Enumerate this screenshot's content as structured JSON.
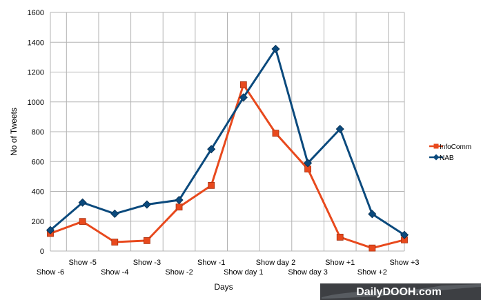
{
  "chart_data": {
    "type": "line",
    "categories": [
      "Show -6",
      "Show -5",
      "Show -4",
      "Show -3",
      "Show -2",
      "Show -1",
      "Show day 1",
      "Show day 2",
      "Show day 3",
      "Show +1",
      "Show +2",
      "Show +3"
    ],
    "series": [
      {
        "name": "InfoComm",
        "color": "#e8491d",
        "marker": "square",
        "values": [
          118,
          198,
          60,
          70,
          295,
          440,
          1115,
          790,
          550,
          93,
          20,
          75
        ]
      },
      {
        "name": "NAB",
        "color": "#0b4a7d",
        "marker": "diamond",
        "values": [
          140,
          325,
          250,
          312,
          342,
          683,
          1030,
          1355,
          590,
          818,
          248,
          108
        ]
      }
    ],
    "xlabel": "Days",
    "ylabel": "No of Tweets",
    "ylim": [
      0,
      1600
    ],
    "yticks": [
      0,
      200,
      400,
      600,
      800,
      1000,
      1200,
      1400,
      1600
    ],
    "grid": true,
    "legend_position": "right"
  },
  "watermark": {
    "text": "DailyDOOH.com",
    "background": "#3d3f43"
  }
}
